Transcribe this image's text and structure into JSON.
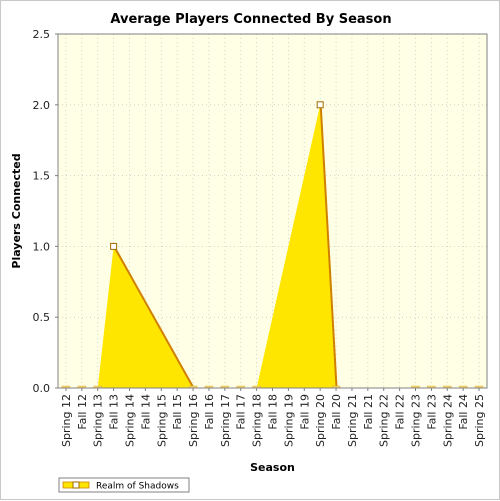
{
  "chart_data": {
    "type": "area",
    "title": "Average Players Connected By Season",
    "xlabel": "Season",
    "ylabel": "Players Connected",
    "ylim": [
      0,
      2.5
    ],
    "yticks": [
      "0.0",
      "0.5",
      "1.0",
      "1.5",
      "2.0",
      "2.5"
    ],
    "grid": true,
    "legend_position": "bottom-left",
    "categories": [
      "Spring 12",
      "Fall 12",
      "Spring 13",
      "Fall 13",
      "Spring 14",
      "Fall 14",
      "Spring 15",
      "Fall 15",
      "Spring 16",
      "Fall 16",
      "Spring 17",
      "Fall 17",
      "Spring 18",
      "Fall 18",
      "Spring 19",
      "Fall 19",
      "Spring 20",
      "Fall 20",
      "Spring 21",
      "Fall 21",
      "Spring 22",
      "Fall 22",
      "Spring 23",
      "Fall 23",
      "Spring 24",
      "Fall 24",
      "Spring 25"
    ],
    "series": [
      {
        "name": "Realm of Shadows",
        "color": "#ffe600",
        "edge_color": "#d08000",
        "x": [
          "Spring 12",
          "Fall 12",
          "Spring 13",
          "Fall 13",
          "Spring 16",
          "Fall 16",
          "Spring 17",
          "Fall 17",
          "Spring 18",
          "Spring 20",
          "Fall 20",
          "Spring 23",
          "Fall 23",
          "Spring 24",
          "Fall 24",
          "Spring 25"
        ],
        "values": [
          0,
          0,
          0,
          1,
          0,
          0,
          0,
          0,
          0,
          2,
          0,
          0,
          0,
          0,
          0,
          0
        ]
      }
    ]
  },
  "colors": {
    "plot_background": "#ffffe6",
    "grid": "#c8c8c8",
    "frame": "#808080"
  }
}
